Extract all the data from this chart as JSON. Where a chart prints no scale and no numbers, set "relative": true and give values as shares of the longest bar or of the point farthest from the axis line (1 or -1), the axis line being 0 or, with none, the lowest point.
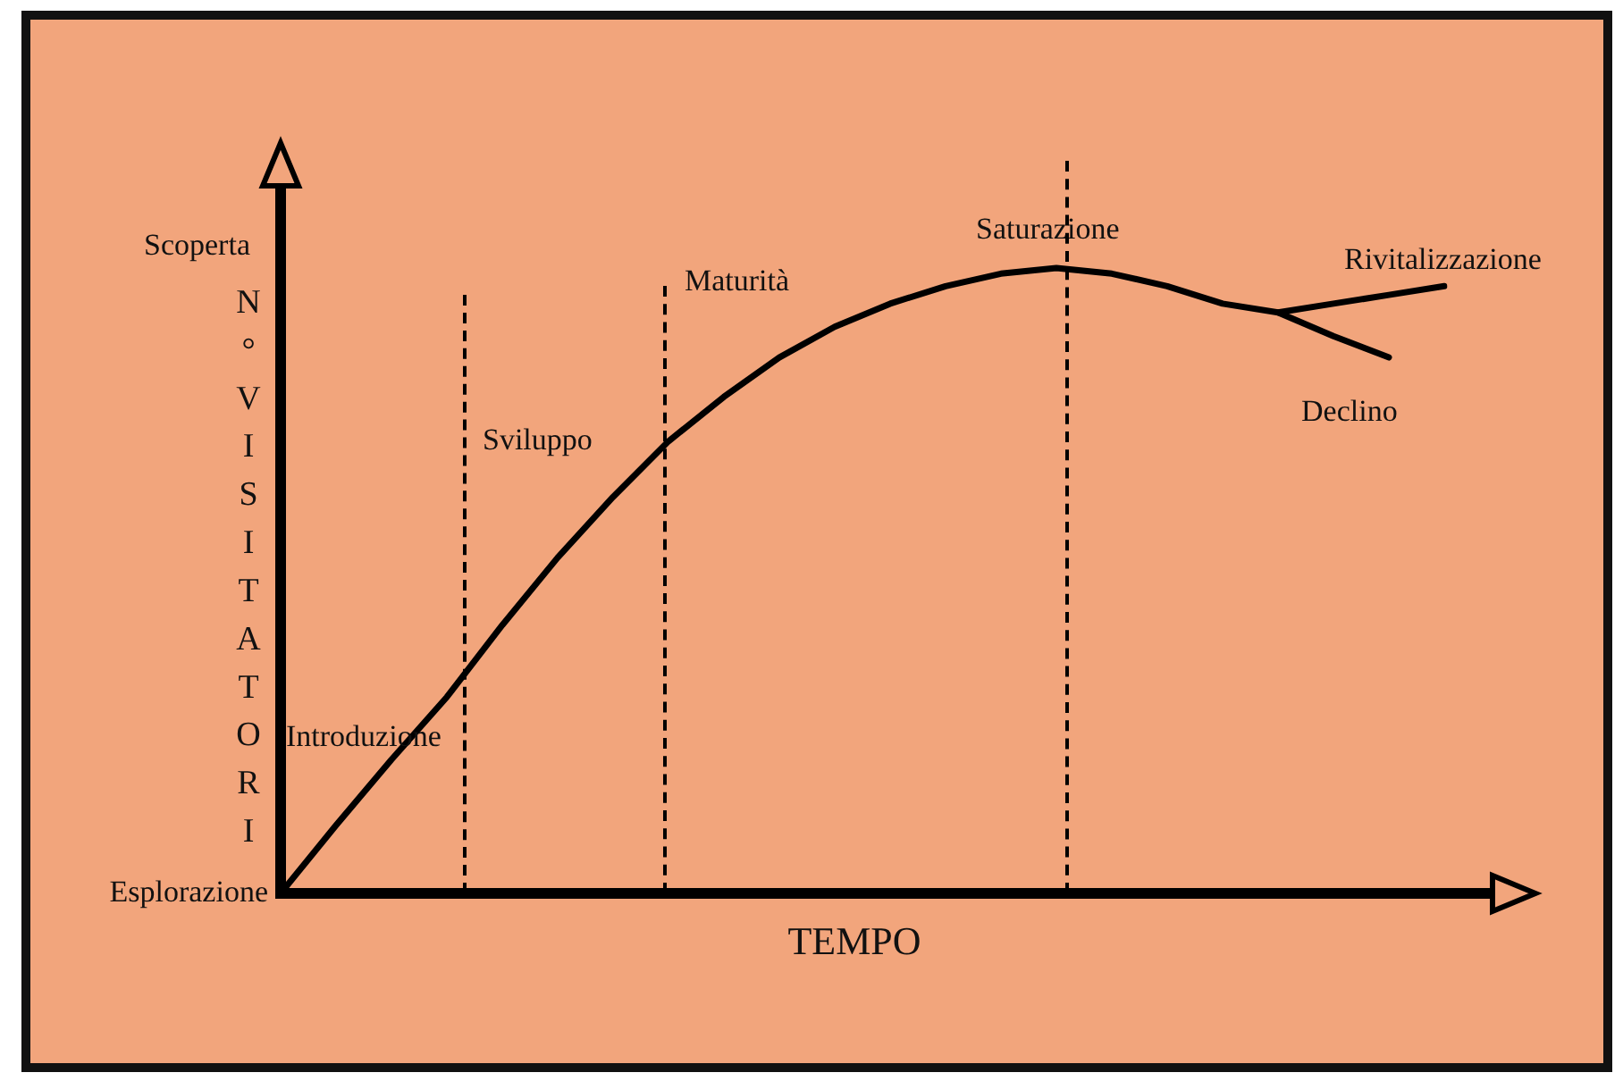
{
  "chart_data": {
    "type": "line",
    "relative": true,
    "xlabel": "TEMPO",
    "ylabel": "N° VISITATORI",
    "legend": false,
    "marker": "none",
    "line_style": "solid",
    "categories": [
      null,
      null,
      null,
      null,
      null,
      null,
      null,
      null,
      null,
      null,
      null,
      null,
      null,
      null,
      null,
      null,
      null,
      null,
      null,
      null,
      null,
      null
    ],
    "series": [
      {
        "color": "#000000",
        "values": [
          0,
          0.109,
          0.214,
          0.314,
          0.429,
          0.537,
          0.634,
          0.723,
          0.794,
          0.857,
          0.906,
          0.943,
          0.971,
          0.991,
          1,
          0.991,
          0.971,
          0.943,
          0.929,
          0.891,
          0.857,
          null
        ]
      },
      {
        "color": "#000000",
        "values": [
          null,
          null,
          null,
          null,
          null,
          null,
          null,
          null,
          null,
          null,
          null,
          null,
          null,
          null,
          null,
          null,
          null,
          null,
          0.929,
          0.943,
          0.957,
          0.971
        ]
      }
    ],
    "annotations": [
      "Scoperta",
      "Esplorazione",
      "Introduzione",
      "Sviluppo",
      "Maturità",
      "Saturazione",
      "Rivitalizzazione",
      "Declino"
    ]
  }
}
